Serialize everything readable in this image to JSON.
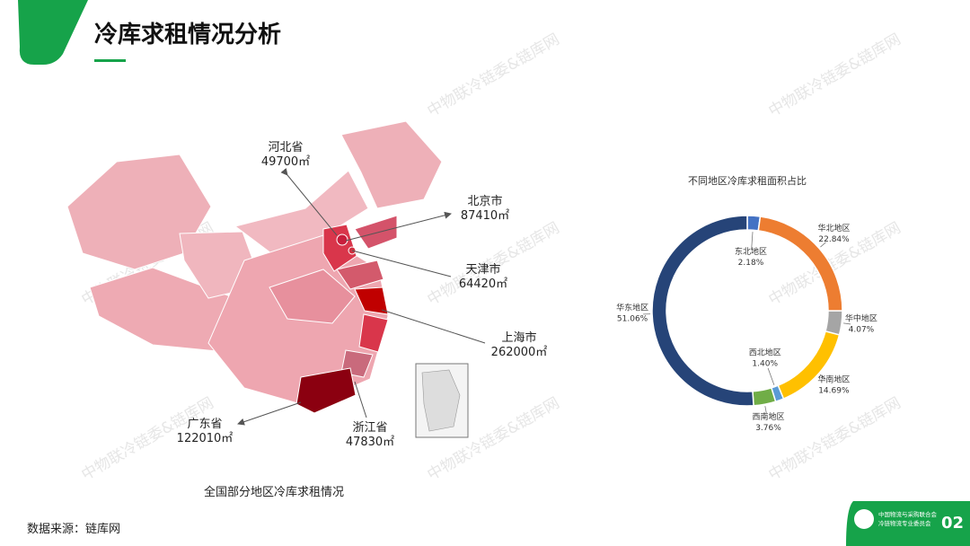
{
  "header": {
    "title": "冷库求租情况分析"
  },
  "watermark": "中物联冷链委&链库网",
  "map": {
    "caption": "全国部分地区冷库求租情况",
    "labels": [
      {
        "name": "河北省",
        "value": "49700㎡"
      },
      {
        "name": "北京市",
        "value": "87410㎡"
      },
      {
        "name": "天津市",
        "value": "64420㎡"
      },
      {
        "name": "上海市",
        "value": "262000㎡"
      },
      {
        "name": "广东省",
        "value": "122010㎡"
      },
      {
        "name": "浙江省",
        "value": "47830㎡"
      }
    ]
  },
  "chart_data": {
    "type": "pie",
    "donut": true,
    "title": "不同地区冷库求租面积占比",
    "categories": [
      "东北地区",
      "华北地区",
      "华中地区",
      "华南地区",
      "西北地区",
      "西南地区",
      "华东地区"
    ],
    "values": [
      2.18,
      22.84,
      4.07,
      14.69,
      1.4,
      3.76,
      51.06
    ],
    "value_labels": [
      "2.18%",
      "22.84%",
      "4.07%",
      "14.69%",
      "1.40%",
      "3.76%",
      "51.06%"
    ],
    "colors": [
      "#4472c4",
      "#ed7d31",
      "#a5a5a5",
      "#ffc000",
      "#5b9bd5",
      "#70ad47",
      "#264478"
    ]
  },
  "footer": {
    "source": "数据来源：链库网",
    "org": [
      "中国物流与采购联合会",
      "冷链物流专业委员会"
    ],
    "page": "02"
  }
}
